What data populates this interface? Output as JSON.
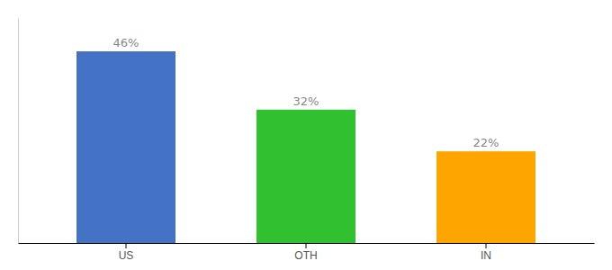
{
  "chart_data": {
    "type": "bar",
    "categories": [
      "US",
      "OTH",
      "IN"
    ],
    "values": [
      46,
      32,
      22
    ],
    "value_labels": [
      "46%",
      "32%",
      "22%"
    ],
    "colors": [
      "#4472C4",
      "#30C030",
      "#FFA500"
    ],
    "ylim": [
      0,
      54
    ],
    "data_labels": true,
    "tick_labels": "x"
  }
}
